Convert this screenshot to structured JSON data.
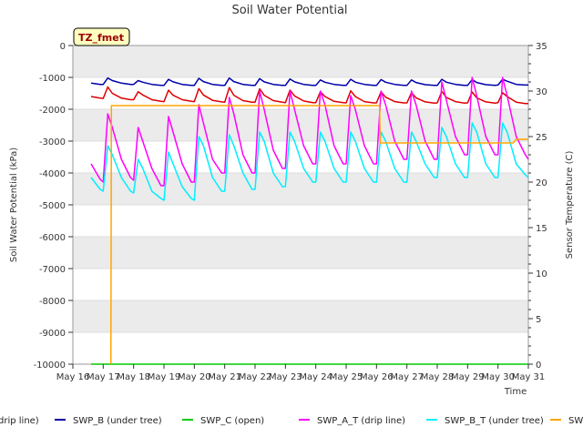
{
  "chart_data": {
    "type": "line",
    "title": "Soil Water Potential",
    "xlabel": "Time",
    "ylabel": "Soil Water Potential (kPa)",
    "y2label": "Sensor Temperature (C)",
    "ylim": [
      -10000,
      0
    ],
    "y2lim": [
      0,
      35
    ],
    "xlim": [
      16,
      31
    ],
    "xticks": [
      16,
      17,
      18,
      19,
      20,
      21,
      22,
      23,
      24,
      25,
      26,
      27,
      28,
      29,
      30,
      31
    ],
    "xtick_labels": [
      "May 16",
      "May 17",
      "May 18",
      "May 19",
      "May 20",
      "May 21",
      "May 22",
      "May 23",
      "May 24",
      "May 25",
      "May 26",
      "May 27",
      "May 28",
      "May 29",
      "May 30",
      "May 31"
    ],
    "yticks": [
      0,
      -1000,
      -2000,
      -3000,
      -4000,
      -5000,
      -6000,
      -7000,
      -8000,
      -9000,
      -10000
    ],
    "ytick_labels": [
      "0",
      "-1000",
      "-2000",
      "-3000",
      "-4000",
      "-5000",
      "-6000",
      "-7000",
      "-8000",
      "-9000",
      "-10000"
    ],
    "y2ticks": [
      0,
      5,
      10,
      15,
      20,
      25,
      30,
      35
    ],
    "y2tick_labels": [
      "0",
      "5",
      "10",
      "15",
      "20",
      "25",
      "30",
      "35"
    ],
    "annotation": "TZ_fmet",
    "series": [
      {
        "name": "SWP_A (drip line)",
        "legend_label": "drip line)",
        "color": "#dd0000",
        "axis": "left",
        "x": [
          16.6,
          16.9,
          17.0,
          17.15,
          17.3,
          17.6,
          17.9,
          18.0,
          18.15,
          18.3,
          18.6,
          18.9,
          19.0,
          19.15,
          19.3,
          19.6,
          19.9,
          20.0,
          20.15,
          20.3,
          20.6,
          20.9,
          21.0,
          21.15,
          21.3,
          21.6,
          21.9,
          22.0,
          22.15,
          22.3,
          22.6,
          22.9,
          23.0,
          23.15,
          23.3,
          23.6,
          23.9,
          24.0,
          24.15,
          24.3,
          24.6,
          24.9,
          25.0,
          25.15,
          25.3,
          25.6,
          25.9,
          26.0,
          26.15,
          26.3,
          26.6,
          26.9,
          27.0,
          27.15,
          27.3,
          27.6,
          27.9,
          28.0,
          28.15,
          28.3,
          28.6,
          28.9,
          29.0,
          29.15,
          29.3,
          29.6,
          29.9,
          30.0,
          30.15,
          30.3,
          30.6,
          30.9,
          31.0
        ],
        "y": [
          -1600,
          -1650,
          -1660,
          -1300,
          -1500,
          -1650,
          -1700,
          -1700,
          -1450,
          -1550,
          -1700,
          -1750,
          -1760,
          -1400,
          -1560,
          -1700,
          -1750,
          -1760,
          -1350,
          -1550,
          -1720,
          -1770,
          -1780,
          -1320,
          -1560,
          -1730,
          -1780,
          -1780,
          -1360,
          -1560,
          -1730,
          -1780,
          -1790,
          -1400,
          -1580,
          -1740,
          -1790,
          -1790,
          -1450,
          -1600,
          -1750,
          -1790,
          -1800,
          -1420,
          -1600,
          -1760,
          -1800,
          -1800,
          -1450,
          -1620,
          -1760,
          -1800,
          -1800,
          -1480,
          -1640,
          -1770,
          -1810,
          -1800,
          -1440,
          -1630,
          -1760,
          -1810,
          -1800,
          -1460,
          -1640,
          -1770,
          -1810,
          -1790,
          -1480,
          -1600,
          -1780,
          -1820,
          -1820
        ]
      },
      {
        "name": "SWP_B (under tree)",
        "legend_label": "SWP_B (under tree)",
        "color": "#0000aa",
        "axis": "left",
        "x": [
          16.6,
          16.9,
          17.0,
          17.15,
          17.3,
          17.6,
          17.9,
          18.0,
          18.15,
          18.3,
          18.6,
          18.9,
          19.0,
          19.15,
          19.3,
          19.6,
          19.9,
          20.0,
          20.15,
          20.3,
          20.6,
          20.9,
          21.0,
          21.15,
          21.3,
          21.6,
          21.9,
          22.0,
          22.15,
          22.3,
          22.6,
          22.9,
          23.0,
          23.15,
          23.3,
          23.6,
          23.9,
          24.0,
          24.15,
          24.3,
          24.6,
          24.9,
          25.0,
          25.15,
          25.3,
          25.6,
          25.9,
          26.0,
          26.15,
          26.3,
          26.6,
          26.9,
          27.0,
          27.15,
          27.3,
          27.6,
          27.9,
          28.0,
          28.15,
          28.3,
          28.6,
          28.9,
          29.0,
          29.15,
          29.3,
          29.6,
          29.9,
          30.0,
          30.15,
          30.3,
          30.6,
          30.9,
          31.0
        ],
        "y": [
          -1180,
          -1220,
          -1220,
          -1020,
          -1100,
          -1180,
          -1220,
          -1220,
          -1100,
          -1150,
          -1220,
          -1250,
          -1250,
          -1060,
          -1140,
          -1220,
          -1250,
          -1250,
          -1030,
          -1130,
          -1220,
          -1250,
          -1250,
          -1020,
          -1130,
          -1220,
          -1250,
          -1250,
          -1040,
          -1140,
          -1220,
          -1250,
          -1250,
          -1050,
          -1140,
          -1220,
          -1250,
          -1250,
          -1080,
          -1150,
          -1220,
          -1250,
          -1250,
          -1060,
          -1150,
          -1220,
          -1250,
          -1250,
          -1070,
          -1150,
          -1220,
          -1250,
          -1250,
          -1080,
          -1160,
          -1230,
          -1250,
          -1250,
          -1060,
          -1150,
          -1220,
          -1250,
          -1250,
          -1070,
          -1160,
          -1230,
          -1250,
          -1240,
          -1060,
          -1120,
          -1220,
          -1240,
          -1240
        ]
      },
      {
        "name": "SWP_C (open)",
        "legend_label": "SWP_C (open)",
        "color": "#00cc00",
        "axis": "left",
        "x": [
          16.6,
          31.0
        ],
        "y": [
          -10000,
          -10000
        ]
      },
      {
        "name": "SWP_A_T (drip line)",
        "legend_label": "SWP_A_T (drip line)",
        "color": "#ff00ff",
        "axis": "right",
        "x": [
          16.6,
          16.9,
          17.0,
          17.15,
          17.3,
          17.6,
          17.9,
          18.0,
          18.15,
          18.3,
          18.6,
          18.9,
          19.0,
          19.15,
          19.3,
          19.6,
          19.9,
          20.0,
          20.15,
          20.3,
          20.6,
          20.9,
          21.0,
          21.15,
          21.3,
          21.6,
          21.9,
          22.0,
          22.15,
          22.3,
          22.6,
          22.9,
          23.0,
          23.15,
          23.3,
          23.6,
          23.9,
          24.0,
          24.15,
          24.3,
          24.6,
          24.9,
          25.0,
          25.15,
          25.3,
          25.6,
          25.9,
          26.0,
          26.15,
          26.3,
          26.6,
          26.9,
          27.0,
          27.15,
          27.3,
          27.6,
          27.9,
          28.0,
          28.15,
          28.3,
          28.6,
          28.9,
          29.0,
          29.15,
          29.3,
          29.6,
          29.9,
          30.0,
          30.15,
          30.3,
          30.6,
          30.9,
          31.0
        ],
        "y": [
          22.0,
          20.3,
          20.0,
          27.5,
          26.0,
          22.5,
          20.5,
          20.2,
          26.0,
          24.5,
          21.5,
          19.6,
          19.6,
          27.2,
          25.5,
          22.0,
          20.0,
          20.0,
          28.5,
          26.5,
          22.5,
          21.0,
          21.0,
          29.3,
          27.5,
          23.0,
          21.0,
          21.0,
          30.0,
          28.0,
          23.5,
          21.5,
          21.5,
          30.0,
          28.0,
          24.0,
          22.0,
          22.0,
          30.0,
          28.5,
          24.0,
          22.0,
          22.0,
          29.5,
          28.0,
          24.0,
          22.0,
          22.0,
          30.0,
          28.5,
          24.5,
          22.5,
          22.5,
          30.0,
          28.5,
          24.5,
          22.5,
          22.5,
          31.0,
          29.0,
          25.0,
          23.0,
          23.0,
          31.5,
          29.5,
          25.0,
          23.0,
          23.0,
          31.5,
          29.5,
          25.0,
          23.0,
          22.5
        ]
      },
      {
        "name": "SWP_B_T (under tree)",
        "legend_label": "SWP_B_T (under tree)",
        "color": "#00eeff",
        "axis": "right",
        "x": [
          16.6,
          16.9,
          17.0,
          17.15,
          17.3,
          17.6,
          17.9,
          18.0,
          18.15,
          18.3,
          18.6,
          18.9,
          19.0,
          19.15,
          19.3,
          19.6,
          19.9,
          20.0,
          20.15,
          20.3,
          20.6,
          20.9,
          21.0,
          21.15,
          21.3,
          21.6,
          21.9,
          22.0,
          22.15,
          22.3,
          22.6,
          22.9,
          23.0,
          23.15,
          23.3,
          23.6,
          23.9,
          24.0,
          24.15,
          24.3,
          24.6,
          24.9,
          25.0,
          25.15,
          25.3,
          25.6,
          25.9,
          26.0,
          26.15,
          26.3,
          26.6,
          26.9,
          27.0,
          27.15,
          27.3,
          27.6,
          27.9,
          28.0,
          28.15,
          28.3,
          28.6,
          28.9,
          29.0,
          29.15,
          29.3,
          29.6,
          29.9,
          30.0,
          30.15,
          30.3,
          30.6,
          30.9,
          31.0
        ],
        "y": [
          20.5,
          19.2,
          19.0,
          24.0,
          23.0,
          20.5,
          19.0,
          18.8,
          22.5,
          21.5,
          19.0,
          18.2,
          18.0,
          23.3,
          22.0,
          19.5,
          18.2,
          18.0,
          25.0,
          24.0,
          20.5,
          19.0,
          19.0,
          25.2,
          24.0,
          21.0,
          19.2,
          19.2,
          25.5,
          24.5,
          21.0,
          19.5,
          19.5,
          25.5,
          24.5,
          21.5,
          20.0,
          20.0,
          25.5,
          24.5,
          21.5,
          20.0,
          20.0,
          25.5,
          24.5,
          21.5,
          20.0,
          20.0,
          25.5,
          24.5,
          21.5,
          20.0,
          20.0,
          25.5,
          24.5,
          22.0,
          20.5,
          20.5,
          26.0,
          25.0,
          22.0,
          20.5,
          20.5,
          26.5,
          25.5,
          22.0,
          20.5,
          20.5,
          26.5,
          25.5,
          22.0,
          20.8,
          20.5
        ]
      },
      {
        "name": "SWP_C_T (open)",
        "legend_label": "SWP_",
        "color": "#ffa500",
        "axis": "right",
        "x": [
          17.25,
          17.27,
          17.35,
          26.1,
          26.12,
          30.5,
          30.6,
          31.0
        ],
        "y": [
          0,
          28.4,
          28.4,
          28.4,
          24.3,
          24.3,
          24.7,
          24.7
        ]
      }
    ]
  }
}
